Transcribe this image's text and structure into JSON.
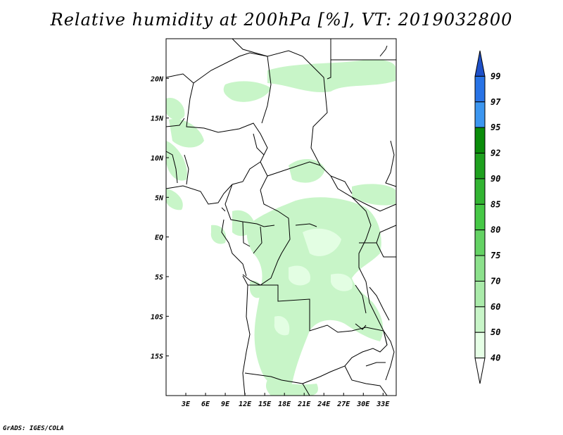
{
  "title": "Relative humidity at 200hPa [%], VT: 2019032800",
  "credit": "GrADS: IGES/COLA",
  "map": {
    "lat_labels": [
      "20N",
      "15N",
      "10N",
      "5N",
      "EQ",
      "5S",
      "10S",
      "15S"
    ],
    "lon_labels": [
      "3E",
      "6E",
      "9E",
      "12E",
      "15E",
      "18E",
      "21E",
      "24E",
      "27E",
      "30E",
      "33E"
    ],
    "lat_values": [
      20,
      15,
      10,
      5,
      0,
      -5,
      -10,
      -15
    ],
    "lon_values": [
      3,
      6,
      9,
      12,
      15,
      18,
      21,
      24,
      27,
      30,
      33
    ],
    "lon_range": [
      0,
      35
    ],
    "lat_range": [
      -20,
      25
    ]
  },
  "colorbar": {
    "levels": [
      "99",
      "97",
      "95",
      "92",
      "90",
      "85",
      "80",
      "75",
      "70",
      "60",
      "50",
      "40"
    ],
    "colors": [
      "#1e50c8",
      "#2873e6",
      "#3c96f0",
      "#0a8c0a",
      "#1ea01e",
      "#32b432",
      "#46c846",
      "#64d264",
      "#8ce18c",
      "#aaebaa",
      "#c8f5c8",
      "#e6ffe6",
      "#ffffff"
    ]
  }
}
